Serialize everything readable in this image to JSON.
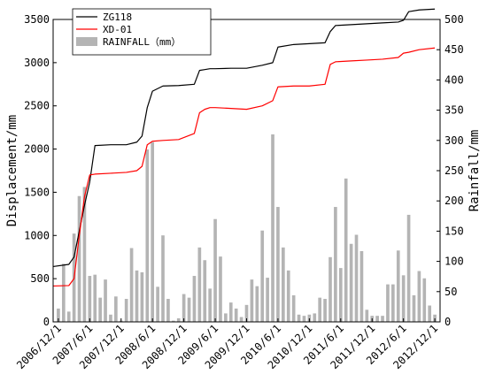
{
  "chart_data": {
    "type": "bar+line",
    "legend": {
      "position": "top-left",
      "entries": [
        "ZG118",
        "XD-01",
        "RAINFALL（mm）"
      ]
    },
    "y_left": {
      "label": "Displacement/mm",
      "range": [
        0,
        3500
      ],
      "ticks": [
        0,
        500,
        1000,
        1500,
        2000,
        2500,
        3000,
        3500
      ]
    },
    "y_right": {
      "label": "Rainfall/mm",
      "range": [
        0,
        500
      ],
      "ticks": [
        0,
        50,
        100,
        150,
        200,
        250,
        300,
        350,
        400,
        450,
        500
      ]
    },
    "x_axis": {
      "range": [
        "2006-11",
        "2013-01"
      ],
      "tick_labels": [
        "2006/12/1",
        "2007/6/1",
        "2007/12/1",
        "2008/6/1",
        "2008/12/1",
        "2009/6/1",
        "2009/12/1",
        "2010/6/1",
        "2010/12/1",
        "2011/6/1",
        "2011/12/1",
        "2012/6/1",
        "2012/12/1"
      ]
    },
    "rainfall": {
      "name": "RAINFALL（mm）",
      "color": "#b4b4b4",
      "months": [
        "2006-12",
        "2007-01",
        "2007-02",
        "2007-03",
        "2007-04",
        "2007-05",
        "2007-06",
        "2007-07",
        "2007-08",
        "2007-09",
        "2007-10",
        "2007-11",
        "2007-12",
        "2008-01",
        "2008-02",
        "2008-03",
        "2008-04",
        "2008-05",
        "2008-06",
        "2008-07",
        "2008-08",
        "2008-09",
        "2008-10",
        "2008-11",
        "2008-12",
        "2009-01",
        "2009-02",
        "2009-03",
        "2009-04",
        "2009-05",
        "2009-06",
        "2009-07",
        "2009-08",
        "2009-09",
        "2009-10",
        "2009-11",
        "2009-12",
        "2010-01",
        "2010-02",
        "2010-03",
        "2010-04",
        "2010-05",
        "2010-06",
        "2010-07",
        "2010-08",
        "2010-09",
        "2010-10",
        "2010-11",
        "2010-12",
        "2011-01",
        "2011-02",
        "2011-03",
        "2011-04",
        "2011-05",
        "2011-06",
        "2011-07",
        "2011-08",
        "2011-09",
        "2011-10",
        "2011-11",
        "2011-12",
        "2012-01",
        "2012-02",
        "2012-03",
        "2012-04",
        "2012-05",
        "2012-06",
        "2012-07",
        "2012-08",
        "2012-09",
        "2012-10",
        "2012-11",
        "2012-12"
      ],
      "values": [
        22,
        96,
        17,
        146,
        208,
        223,
        76,
        78,
        40,
        70,
        12,
        42,
        2,
        38,
        122,
        85,
        82,
        285,
        297,
        58,
        143,
        38,
        2,
        6,
        46,
        40,
        76,
        123,
        102,
        55,
        170,
        108,
        14,
        32,
        22,
        8,
        28,
        70,
        59,
        151,
        73,
        310,
        190,
        123,
        85,
        44,
        12,
        10,
        12,
        14,
        40,
        38,
        107,
        190,
        89,
        237,
        129,
        144,
        117,
        20,
        10,
        10,
        10,
        62,
        62,
        118,
        77,
        177,
        44,
        84,
        72,
        27,
        12
      ]
    },
    "series": [
      {
        "name": "ZG118",
        "color": "#000000",
        "axis": "left",
        "x": [
          "2006-11",
          "2007-02",
          "2007-03",
          "2007-04",
          "2007-05",
          "2007-06",
          "2007-07",
          "2007-10",
          "2008-01",
          "2008-03",
          "2008-04",
          "2008-05",
          "2008-06",
          "2008-08",
          "2008-11",
          "2009-02",
          "2009-03",
          "2009-04",
          "2009-05",
          "2009-06",
          "2009-09",
          "2009-12",
          "2010-03",
          "2010-05",
          "2010-06",
          "2010-09",
          "2010-12",
          "2011-03",
          "2011-04",
          "2011-05",
          "2011-08",
          "2011-11",
          "2012-02",
          "2012-05",
          "2012-06",
          "2012-07",
          "2012-09",
          "2012-12"
        ],
        "y": [
          640,
          665,
          750,
          1050,
          1350,
          1620,
          2040,
          2050,
          2050,
          2080,
          2150,
          2480,
          2670,
          2730,
          2735,
          2750,
          2910,
          2920,
          2930,
          2930,
          2935,
          2935,
          2970,
          3000,
          3180,
          3210,
          3220,
          3230,
          3360,
          3430,
          3440,
          3450,
          3460,
          3470,
          3490,
          3590,
          3610,
          3620
        ]
      },
      {
        "name": "XD-01",
        "color": "#ff0000",
        "axis": "left",
        "x": [
          "2006-11",
          "2007-02",
          "2007-03",
          "2007-04",
          "2007-05",
          "2007-06",
          "2007-07",
          "2007-10",
          "2008-01",
          "2008-03",
          "2008-04",
          "2008-05",
          "2008-06",
          "2008-08",
          "2008-11",
          "2009-02",
          "2009-03",
          "2009-04",
          "2009-05",
          "2009-06",
          "2009-09",
          "2009-12",
          "2010-03",
          "2010-05",
          "2010-06",
          "2010-09",
          "2010-12",
          "2011-03",
          "2011-04",
          "2011-05",
          "2011-08",
          "2011-11",
          "2012-02",
          "2012-05",
          "2012-06",
          "2012-07",
          "2012-09",
          "2012-12"
        ],
        "y": [
          415,
          420,
          500,
          1000,
          1450,
          1700,
          1710,
          1720,
          1730,
          1750,
          1800,
          2050,
          2090,
          2100,
          2110,
          2180,
          2420,
          2460,
          2480,
          2480,
          2470,
          2460,
          2500,
          2560,
          2720,
          2730,
          2730,
          2750,
          2980,
          3010,
          3020,
          3030,
          3040,
          3060,
          3110,
          3120,
          3150,
          3170
        ]
      }
    ]
  }
}
